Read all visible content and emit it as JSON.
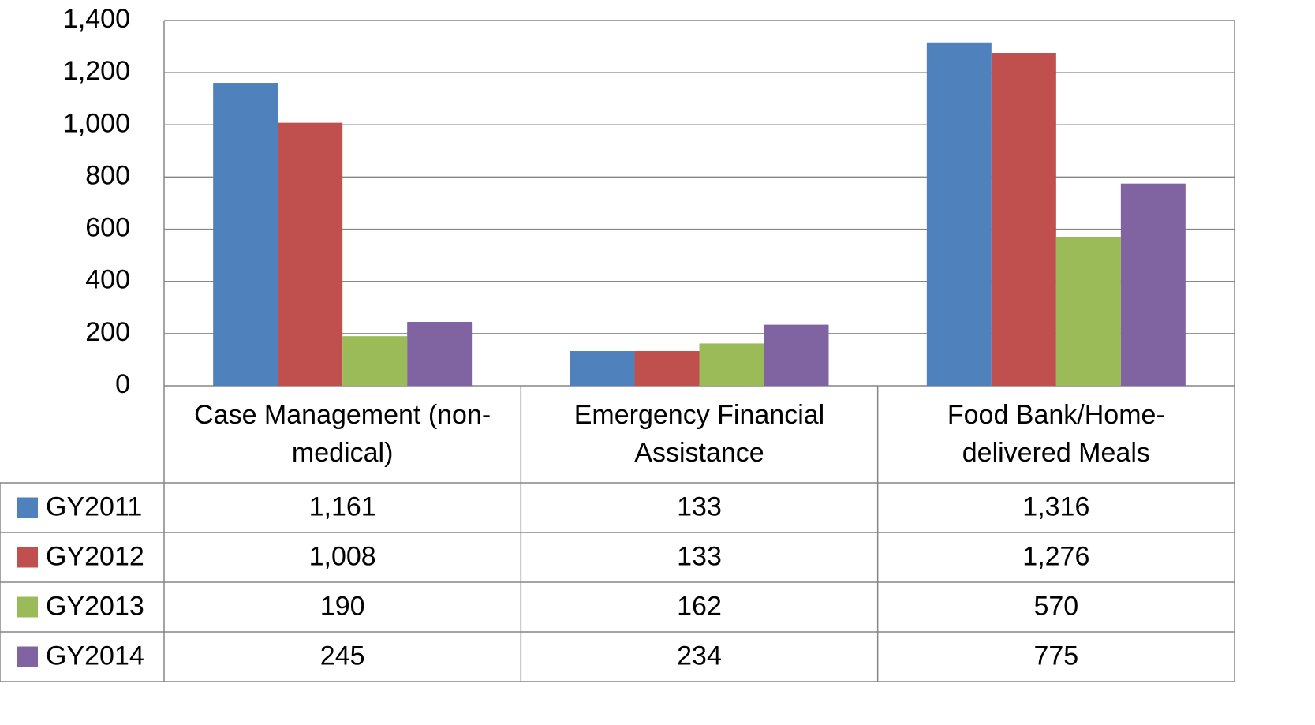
{
  "chart_data": {
    "type": "bar",
    "categories": [
      "Case Management (non-medical)",
      "Emergency Financial Assistance",
      "Food Bank/Home-delivered Meals"
    ],
    "series": [
      {
        "name": "GY2011",
        "color": "#4f81bd",
        "values": [
          1161,
          133,
          1316
        ],
        "value_labels": [
          "1,161",
          "133",
          "1,316"
        ]
      },
      {
        "name": "GY2012",
        "color": "#c0504d",
        "values": [
          1008,
          133,
          1276
        ],
        "value_labels": [
          "1,008",
          "133",
          "1,276"
        ]
      },
      {
        "name": "GY2013",
        "color": "#9bbb59",
        "values": [
          190,
          162,
          570
        ],
        "value_labels": [
          "190",
          "162",
          "570"
        ]
      },
      {
        "name": "GY2014",
        "color": "#8064a2",
        "values": [
          245,
          234,
          775
        ],
        "value_labels": [
          "245",
          "234",
          "775"
        ]
      }
    ],
    "ylim": [
      0,
      1400
    ],
    "yticks": [
      0,
      200,
      400,
      600,
      800,
      {
        "value": 1000,
        "label": "1,000"
      },
      {
        "value": 1200,
        "label": "1,200"
      },
      {
        "value": 1400,
        "label": "1,400"
      }
    ],
    "grid": true
  }
}
